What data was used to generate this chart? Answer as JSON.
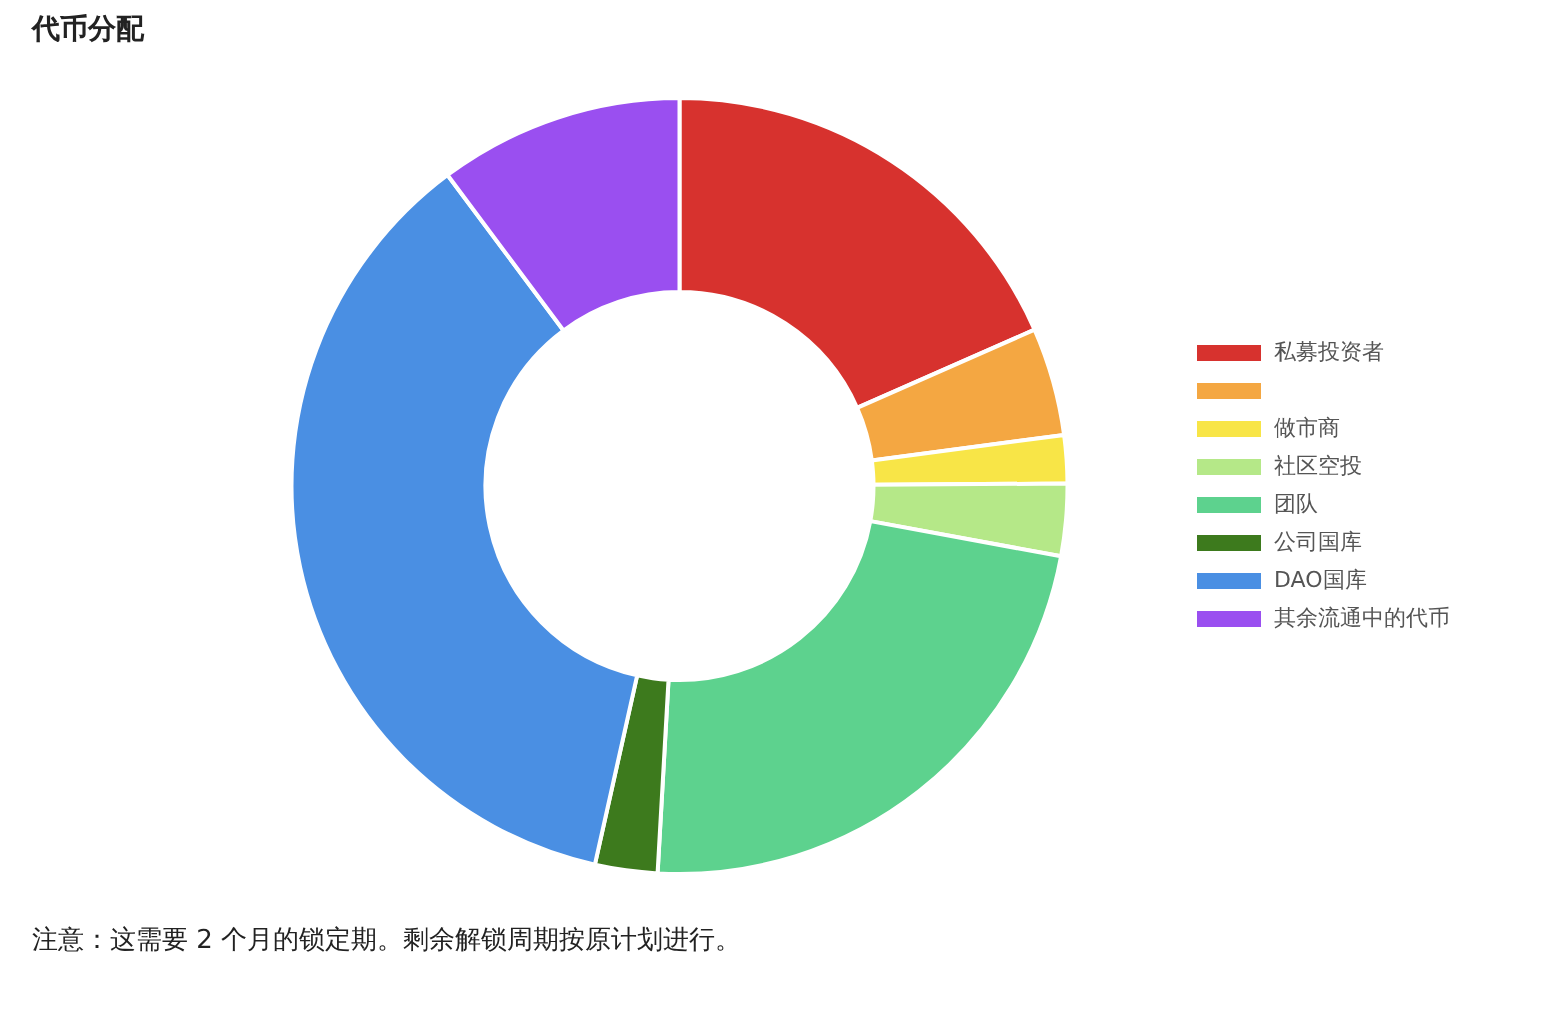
{
  "chart_data": {
    "type": "donut",
    "title": "代币分配",
    "categories": [
      "私募投资者",
      null,
      "做市商",
      "社区空投",
      "团队",
      "公司国库",
      "DAO国库",
      "其余流通中的代币"
    ],
    "values": [
      18.4,
      4.5,
      2,
      3,
      23,
      2.6,
      36.3,
      10.2
    ],
    "colors": [
      "#d7322e",
      "#f4a742",
      "#f8e547",
      "#b5e888",
      "#5dd28e",
      "#3d7a1d",
      "#4a8fe3",
      "#9a4ff0"
    ],
    "legend": "right",
    "annotations": [
      "注意：这需要 2 个月的锁定期。剩余解锁周期按原计划进行。"
    ]
  }
}
